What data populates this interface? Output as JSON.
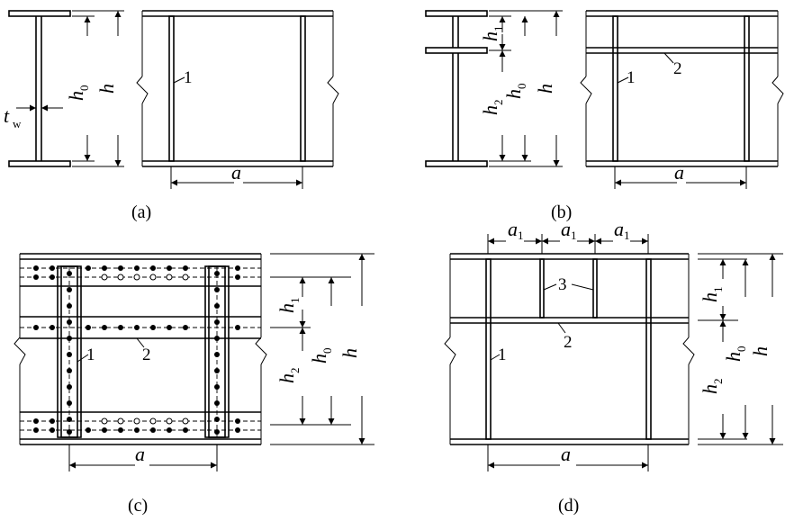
{
  "figure_a": {
    "caption": "(a)",
    "label_tw": "t",
    "label_tw_sub": "w",
    "label_h0": "h",
    "label_h0_sub": "0",
    "label_h": "h",
    "label_a": "a",
    "stiffener_1": "1"
  },
  "figure_b": {
    "caption": "(b)",
    "label_h1": "h",
    "label_h1_sub": "1",
    "label_h2": "h",
    "label_h2_sub": "2",
    "label_h0": "h",
    "label_h0_sub": "0",
    "label_h": "h",
    "label_a": "a",
    "stiffener_1": "1",
    "stiffener_2": "2"
  },
  "figure_c": {
    "caption": "(c)",
    "label_h1": "h",
    "label_h1_sub": "1",
    "label_h2": "h",
    "label_h2_sub": "2",
    "label_h0": "h",
    "label_h0_sub": "0",
    "label_h": "h",
    "label_a": "a",
    "stiffener_1": "1",
    "stiffener_2": "2"
  },
  "figure_d": {
    "caption": "(d)",
    "label_a1_1": "a",
    "label_a1_2": "a",
    "label_a1_3": "a",
    "label_a1_sub": "1",
    "label_h1": "h",
    "label_h1_sub": "1",
    "label_h2": "h",
    "label_h2_sub": "2",
    "label_h0": "h",
    "label_h0_sub": "0",
    "label_h": "h",
    "label_a": "a",
    "stiffener_1": "1",
    "stiffener_2": "2",
    "stiffener_3": "3"
  }
}
